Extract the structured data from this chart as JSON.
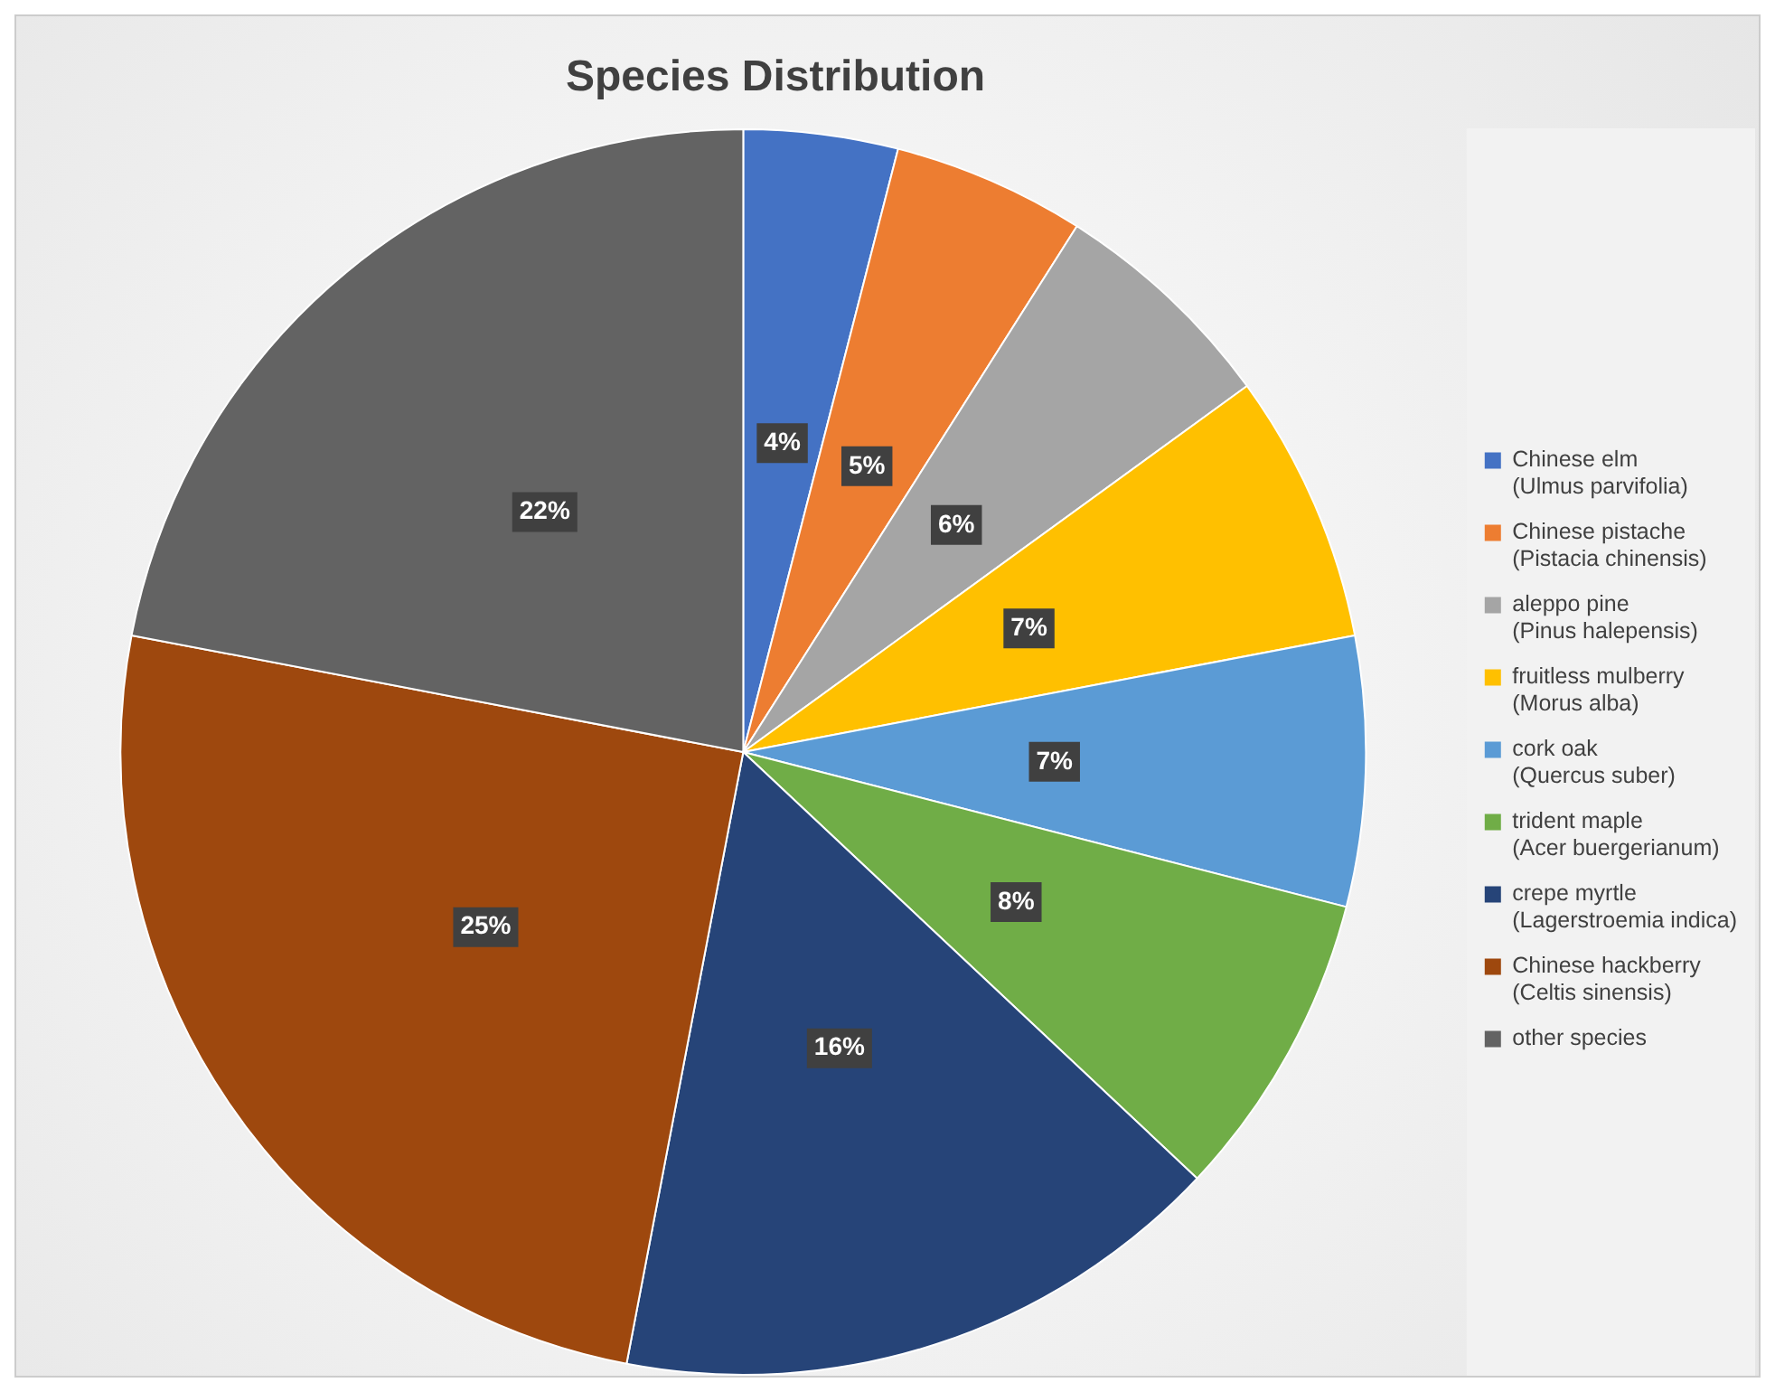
{
  "chart_data": {
    "type": "pie",
    "title": "Species Distribution",
    "categories": [
      "Chinese elm (Ulmus parvifolia)",
      "Chinese pistache (Pistacia chinensis)",
      "aleppo pine (Pinus halepensis)",
      "fruitless mulberry (Morus alba)",
      "cork oak (Quercus suber)",
      "trident maple (Acer buergerianum)",
      "crepe myrtle (Lagerstroemia indica)",
      "Chinese hackberry (Celtis sinensis)",
      "other species"
    ],
    "values": [
      4,
      5,
      6,
      7,
      7,
      8,
      16,
      25,
      22
    ],
    "value_labels": [
      "4%",
      "5%",
      "6%",
      "7%",
      "7%",
      "8%",
      "16%",
      "25%",
      "22%"
    ],
    "colors": [
      "#4472c4",
      "#ed7d31",
      "#a5a5a5",
      "#ffc000",
      "#5b9bd5",
      "#70ad47",
      "#264478",
      "#9e480e",
      "#636363"
    ],
    "legend": "right"
  }
}
